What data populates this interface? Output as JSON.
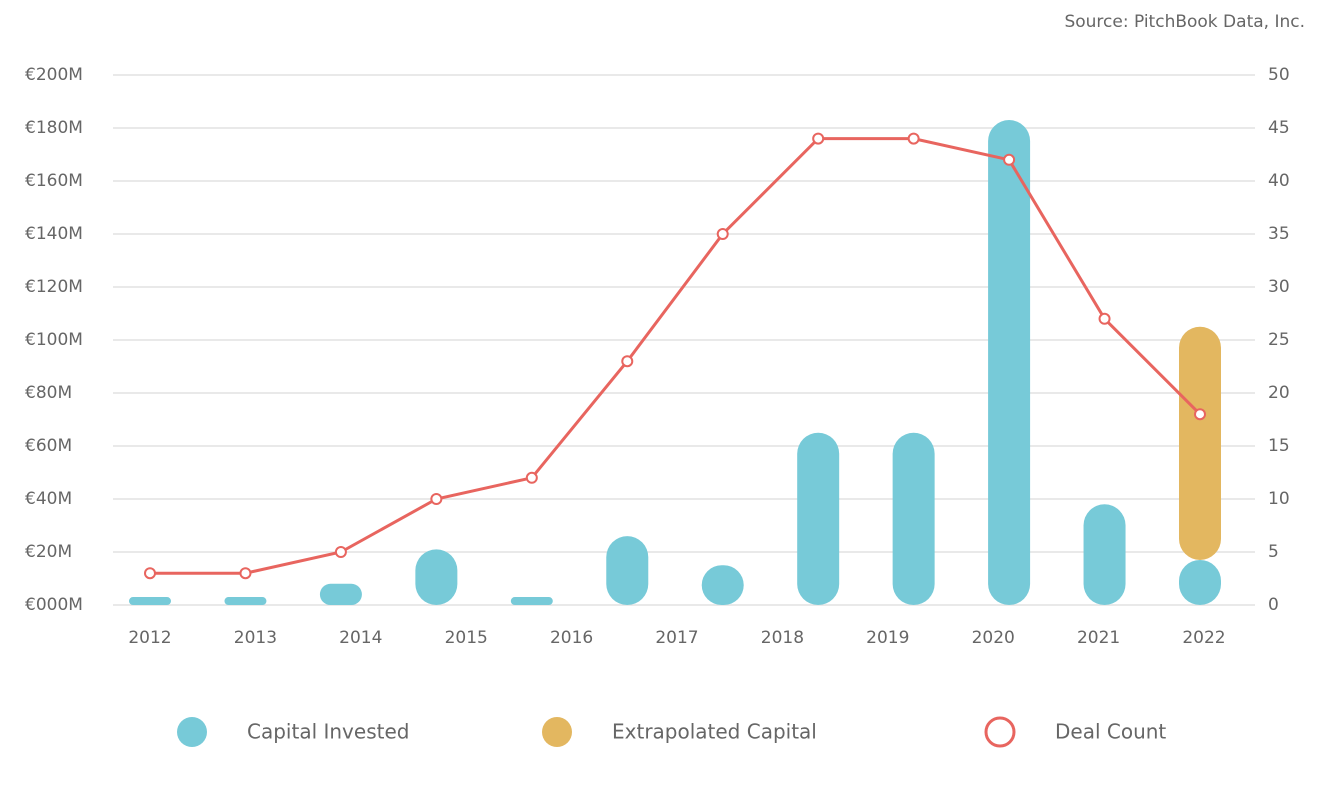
{
  "chart_data": {
    "type": "bar",
    "source": "Source: PitchBook Data, Inc.",
    "categories": [
      "2012",
      "2013",
      "2014",
      "2015",
      "2016",
      "2017",
      "2018",
      "2019",
      "2020",
      "2021",
      "2022",
      null
    ],
    "series": [
      {
        "name": "Capital Invested",
        "color": "#77cad8",
        "values": [
          3,
          3,
          8,
          21,
          3,
          26,
          15,
          65,
          65,
          183,
          38,
          17
        ]
      },
      {
        "name": "Extrapolated Capital",
        "color": "#e3b760",
        "values": [
          null,
          null,
          null,
          null,
          null,
          null,
          null,
          null,
          null,
          null,
          null,
          88
        ]
      },
      {
        "name": "Deal Count",
        "type": "line",
        "axis": "y2",
        "color": "#e8655f",
        "values": [
          3,
          3,
          5,
          10,
          12,
          23,
          35,
          44,
          44,
          42,
          27,
          18
        ]
      }
    ],
    "stacked": true,
    "ylim": [
      0,
      200
    ],
    "yticks": [
      {
        "value": 0,
        "label": "€000M"
      },
      {
        "value": 20,
        "label": "€20M"
      },
      {
        "value": 40,
        "label": "€40M"
      },
      {
        "value": 60,
        "label": "€60M"
      },
      {
        "value": 80,
        "label": "€80M"
      },
      {
        "value": 100,
        "label": "€100M"
      },
      {
        "value": 120,
        "label": "€120M"
      },
      {
        "value": 140,
        "label": "€140M"
      },
      {
        "value": 160,
        "label": "€160M"
      },
      {
        "value": 180,
        "label": "€180M"
      },
      {
        "value": 200,
        "label": "€200M"
      }
    ],
    "y2lim": [
      0,
      50
    ],
    "y2ticks": [
      0,
      5,
      10,
      15,
      20,
      25,
      30,
      35,
      40,
      45,
      50
    ],
    "grid": true,
    "legend": "bottom"
  }
}
